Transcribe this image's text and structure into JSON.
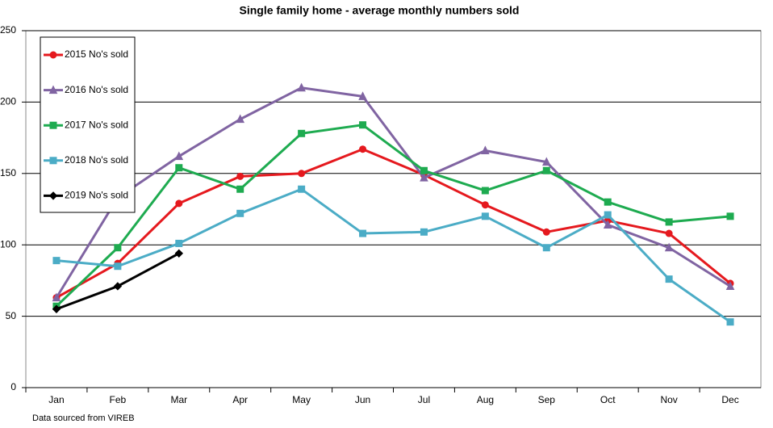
{
  "chart_data": {
    "type": "line",
    "title": "Single family home - average monthly numbers sold",
    "footnote": "Data sourced from VIREB",
    "categories": [
      "Jan",
      "Feb",
      "Mar",
      "Apr",
      "May",
      "Jun",
      "Jul",
      "Aug",
      "Sep",
      "Oct",
      "Nov",
      "Dec"
    ],
    "ylim": [
      0,
      250
    ],
    "yticks": [
      0,
      50,
      100,
      150,
      200,
      250
    ],
    "grid": true,
    "legend": "top-left",
    "series": [
      {
        "name": "2015 No's sold",
        "color": "#e5191e",
        "marker": "circle",
        "values": [
          63,
          87,
          129,
          148,
          150,
          167,
          149,
          128,
          109,
          117,
          108,
          73
        ]
      },
      {
        "name": "2016 No's sold",
        "color": "#8064a2",
        "marker": "triangle",
        "values": [
          63,
          133,
          162,
          188,
          210,
          204,
          147,
          166,
          158,
          114,
          98,
          71
        ]
      },
      {
        "name": "2017 No's sold",
        "color": "#1eab50",
        "marker": "square",
        "values": [
          57,
          98,
          154,
          139,
          178,
          184,
          152,
          138,
          152,
          130,
          116,
          120
        ]
      },
      {
        "name": "2018 No's sold",
        "color": "#4bacc6",
        "marker": "square",
        "values": [
          89,
          85,
          101,
          122,
          139,
          108,
          109,
          120,
          98,
          121,
          76,
          46
        ]
      },
      {
        "name": "2019 No's sold",
        "color": "#000000",
        "marker": "diamond",
        "values": [
          55,
          71,
          94,
          null,
          null,
          null,
          null,
          null,
          null,
          null,
          null,
          null
        ]
      }
    ]
  }
}
